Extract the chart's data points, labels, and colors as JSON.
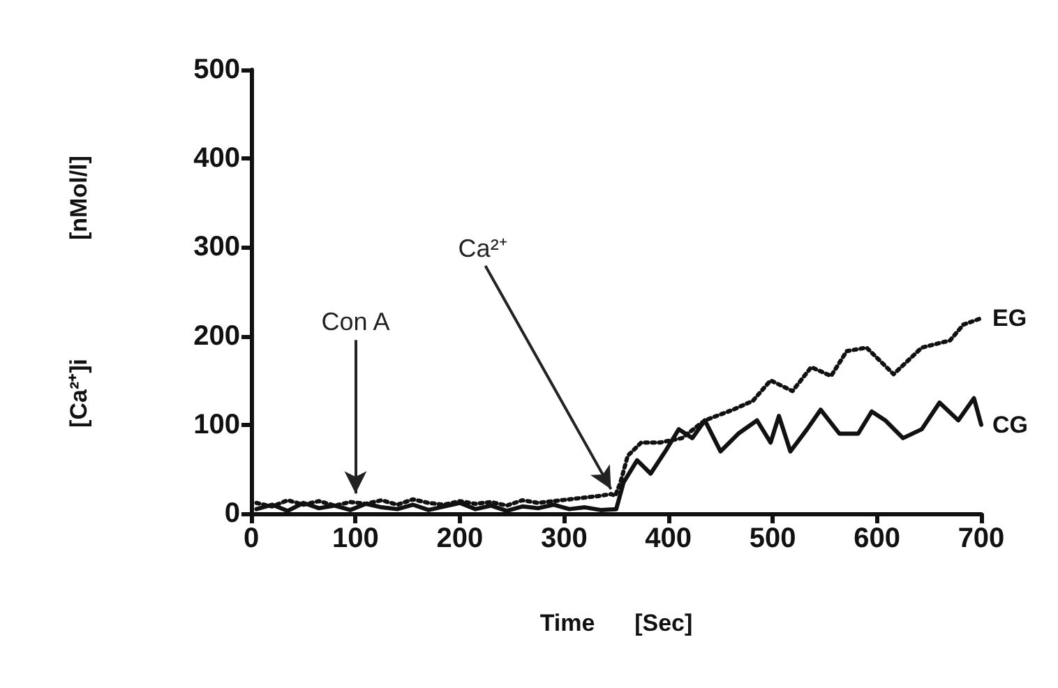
{
  "chart_data": {
    "type": "line",
    "xlabel": "Time      [Sec]",
    "ylabel": "[Ca²⁺]i                  [nMol/l]",
    "xlim": [
      0,
      700
    ],
    "xticks": [
      0,
      100,
      200,
      300,
      400,
      500,
      600,
      700
    ],
    "ylim": [
      0,
      500
    ],
    "yticks": [
      0,
      100,
      200,
      300,
      400,
      500
    ],
    "grid": false,
    "legend": false,
    "marker": "none",
    "annotations": [
      {
        "text": "Con A",
        "x": 100,
        "y": 10
      },
      {
        "text": "Ca²⁺",
        "x": 345,
        "y": 15
      }
    ],
    "series": [
      {
        "name": "EG",
        "color": "#111111",
        "line_style": "dotted",
        "x": [
          5,
          20,
          35,
          50,
          65,
          80,
          95,
          110,
          125,
          140,
          155,
          170,
          185,
          200,
          215,
          230,
          245,
          260,
          275,
          290,
          305,
          320,
          335,
          345,
          349,
          354,
          361,
          374,
          392,
          413,
          435,
          462,
          481,
          498,
          519,
          537,
          556,
          571,
          590,
          616,
          643,
          670,
          683,
          700
        ],
        "values": [
          12,
          8,
          15,
          10,
          14,
          9,
          13,
          11,
          15,
          10,
          16,
          12,
          10,
          14,
          11,
          13,
          9,
          15,
          12,
          14,
          16,
          18,
          20,
          22,
          20,
          35,
          65,
          80,
          80,
          85,
          105,
          117,
          127,
          150,
          138,
          165,
          155,
          183,
          187,
          157,
          187,
          195,
          213,
          220
        ]
      },
      {
        "name": "CG",
        "color": "#111111",
        "line_style": "solid",
        "x": [
          5,
          20,
          35,
          50,
          65,
          80,
          95,
          110,
          125,
          140,
          155,
          170,
          185,
          200,
          215,
          230,
          245,
          260,
          275,
          290,
          305,
          320,
          335,
          350,
          357,
          370,
          383,
          397,
          410,
          423,
          435,
          450,
          467,
          485,
          498,
          506,
          517,
          533,
          546,
          564,
          582,
          595,
          608,
          625,
          643,
          660,
          678,
          693,
          700
        ],
        "values": [
          5,
          10,
          3,
          12,
          6,
          9,
          4,
          11,
          7,
          5,
          10,
          4,
          8,
          12,
          5,
          9,
          3,
          8,
          6,
          10,
          5,
          7,
          4,
          5,
          35,
          60,
          45,
          70,
          95,
          85,
          105,
          70,
          90,
          105,
          80,
          110,
          70,
          95,
          117,
          90,
          90,
          115,
          105,
          85,
          95,
          125,
          105,
          130,
          100
        ]
      }
    ]
  }
}
